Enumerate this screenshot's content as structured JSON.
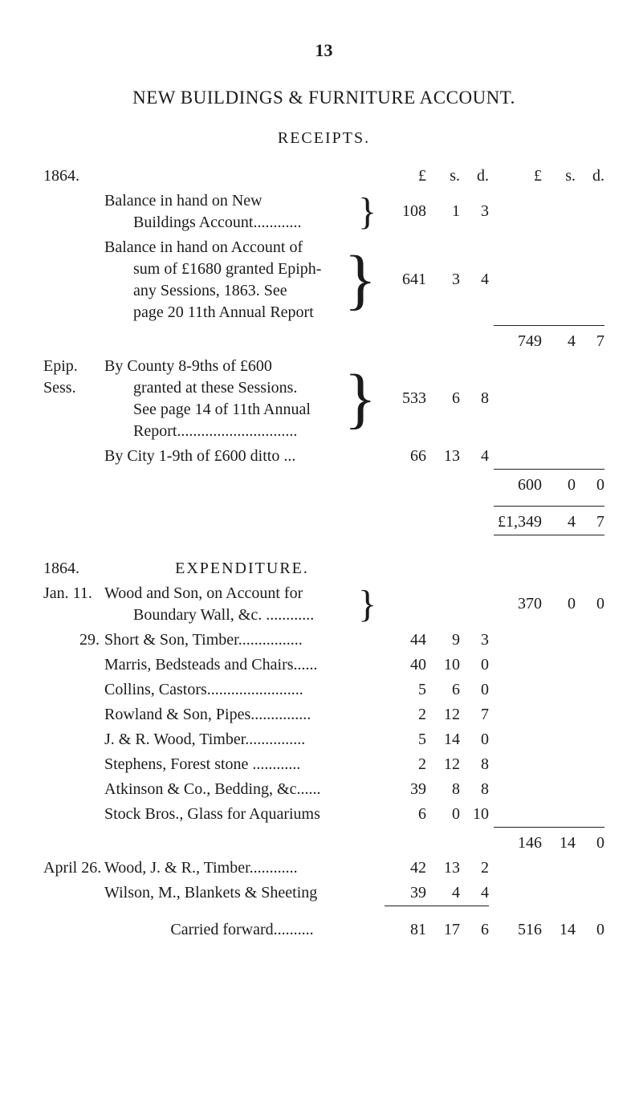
{
  "page_number": "13",
  "title": "NEW BUILDINGS & FURNITURE ACCOUNT.",
  "receipts": {
    "heading": "RECEIPTS.",
    "year": "1864.",
    "currency_inner": {
      "l": "£",
      "s": "s.",
      "d": "d."
    },
    "currency_outer": {
      "l": "£",
      "s": "s.",
      "d": "d."
    },
    "entries": [
      {
        "label_col": "",
        "text_lines": [
          "Balance in hand on New",
          "Buildings Account............"
        ],
        "brace": "}",
        "inner": {
          "l": "108",
          "s": "1",
          "d": "3"
        }
      },
      {
        "label_col": "",
        "text_lines": [
          "Balance in hand on Account of",
          "sum of £1680 granted Epiph-",
          "any Sessions, 1863.  See",
          "page 20 11th Annual Report"
        ],
        "brace": "}",
        "inner": {
          "l": "641",
          "s": "3",
          "d": "4"
        }
      }
    ],
    "subtotal1_outer": {
      "l": "749",
      "s": "4",
      "d": "7"
    },
    "epip_label1": "Epip.",
    "epip_label2": "Sess.",
    "entries2": [
      {
        "text_lines": [
          "By County 8-9ths of £600",
          "granted at these Sessions.",
          "See page 14 of 11th Annual",
          "Report.............................."
        ],
        "brace": "}",
        "inner": {
          "l": "533",
          "s": "6",
          "d": "8"
        }
      },
      {
        "text_lines": [
          "By City 1-9th of £600 ditto   ..."
        ],
        "inner": {
          "l": "66",
          "s": "13",
          "d": "4"
        }
      }
    ],
    "subtotal2_outer": {
      "l": "600",
      "s": "0",
      "d": "0"
    },
    "grand_total_outer": {
      "l": "£1,349",
      "s": "4",
      "d": "7"
    }
  },
  "expenditure": {
    "year": "1864.",
    "heading": "EXPENDITURE.",
    "jan_label": "Jan. 11.",
    "jan_entry": {
      "text_lines": [
        "Wood and Son, on Account for",
        "Boundary Wall, &c. ............"
      ],
      "brace": "}",
      "outer": {
        "l": "370",
        "s": "0",
        "d": "0"
      }
    },
    "line29_label": "29.",
    "inner_list": [
      {
        "text": "Short & Son, Timber................",
        "l": "44",
        "s": "9",
        "d": "3"
      },
      {
        "text": "Marris, Bedsteads and Chairs......",
        "l": "40",
        "s": "10",
        "d": "0"
      },
      {
        "text": "Collins, Castors........................",
        "l": "5",
        "s": "6",
        "d": "0"
      },
      {
        "text": "Rowland & Son, Pipes...............",
        "l": "2",
        "s": "12",
        "d": "7"
      },
      {
        "text": "J. & R. Wood, Timber...............",
        "l": "5",
        "s": "14",
        "d": "0"
      },
      {
        "text": "Stephens, Forest stone ............",
        "l": "2",
        "s": "12",
        "d": "8"
      },
      {
        "text": "Atkinson & Co., Bedding, &c......",
        "l": "39",
        "s": "8",
        "d": "8"
      },
      {
        "text": "Stock Bros., Glass for Aquariums",
        "l": "6",
        "s": "0",
        "d": "10"
      }
    ],
    "subtotal_outer": {
      "l": "146",
      "s": "14",
      "d": "0"
    },
    "april_label": "April 26.",
    "april_list": [
      {
        "text": "Wood, J. & R., Timber............",
        "l": "42",
        "s": "13",
        "d": "2"
      },
      {
        "text": "Wilson, M., Blankets & Sheeting",
        "l": "39",
        "s": "4",
        "d": "4"
      }
    ],
    "carried_forward_label": "Carried forward..........",
    "carried_forward_inner": {
      "l": "81",
      "s": "17",
      "d": "6"
    },
    "carried_forward_outer": {
      "l": "516",
      "s": "14",
      "d": "0"
    }
  },
  "style": {
    "text_color": "#1b1b1b",
    "background": "#ffffff",
    "rule_color": "#222222",
    "font_family": "Times New Roman"
  }
}
